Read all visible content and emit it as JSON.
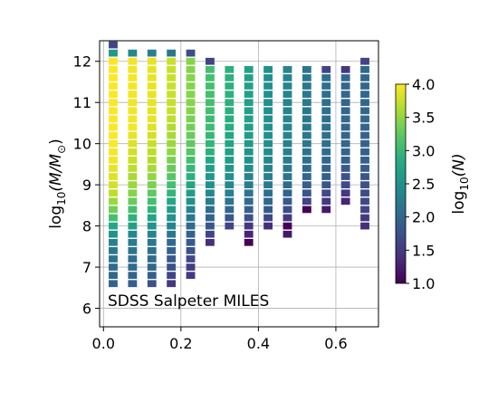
{
  "chart_data": {
    "type": "heatmap",
    "annotation": "SDSS Salpeter MILES",
    "xlim": [
      -0.01,
      0.71
    ],
    "ylim": [
      5.55,
      12.5
    ],
    "x_ticks": [
      0.0,
      0.2,
      0.4,
      0.6
    ],
    "x_tick_labels": [
      "0.0",
      "0.2",
      "0.4",
      "0.6"
    ],
    "y_ticks": [
      6,
      7,
      8,
      9,
      10,
      11,
      12
    ],
    "y_tick_labels": [
      "6",
      "7",
      "8",
      "9",
      "10",
      "11",
      "12"
    ],
    "ylabel_main": "log",
    "ylabel_sub": "10",
    "ylabel_rest": "(M/M",
    "ylabel_sun": "⊙",
    "ylabel_close": ")",
    "grid": true,
    "colorbar": {
      "range": [
        1.0,
        4.0
      ],
      "ticks": [
        1.0,
        1.5,
        2.0,
        2.5,
        3.0,
        3.5,
        4.0
      ],
      "tick_labels": [
        "1.0",
        "1.5",
        "2.0",
        "2.5",
        "3.0",
        "3.5",
        "4.0"
      ],
      "label_main": "log",
      "label_sub": "10",
      "label_rest": "(N)"
    },
    "y_step": 0.2,
    "columns": [
      {
        "x": 0.025,
        "ymin": 6.6,
        "values": [
          1.95,
          2.0,
          2.05,
          2.15,
          2.2,
          2.3,
          2.5,
          2.8,
          3.1,
          3.35,
          3.55,
          3.7,
          3.8,
          3.85,
          3.9,
          3.95,
          3.98,
          4.0,
          4.0,
          4.0,
          4.0,
          4.0,
          4.0,
          4.0,
          4.0,
          4.0,
          4.0,
          4.0,
          2.6,
          1.6
        ]
      },
      {
        "x": 0.075,
        "ymin": 6.6,
        "values": [
          1.9,
          2.0,
          2.05,
          2.1,
          2.15,
          2.25,
          2.4,
          2.7,
          2.9,
          3.1,
          3.3,
          3.45,
          3.55,
          3.6,
          3.7,
          3.75,
          3.8,
          3.85,
          3.9,
          3.95,
          3.95,
          3.95,
          3.95,
          3.95,
          3.95,
          3.95,
          3.95,
          3.95,
          2.4
        ]
      },
      {
        "x": 0.125,
        "ymin": 6.6,
        "values": [
          1.75,
          1.9,
          2.0,
          2.05,
          2.1,
          2.2,
          2.35,
          2.55,
          2.75,
          2.95,
          3.1,
          3.25,
          3.4,
          3.5,
          3.6,
          3.65,
          3.7,
          3.75,
          3.8,
          3.85,
          3.9,
          3.9,
          3.9,
          3.9,
          3.9,
          3.9,
          3.9,
          3.9,
          2.3
        ]
      },
      {
        "x": 0.175,
        "ymin": 6.6,
        "values": [
          1.5,
          1.6,
          1.75,
          1.85,
          1.95,
          2.05,
          2.2,
          2.35,
          2.5,
          2.65,
          2.8,
          2.95,
          3.1,
          3.2,
          3.3,
          3.4,
          3.5,
          3.55,
          3.6,
          3.65,
          3.7,
          3.75,
          3.75,
          3.75,
          3.75,
          3.75,
          3.75,
          3.75,
          2.2
        ]
      },
      {
        "x": 0.225,
        "ymin": 6.8,
        "values": [
          1.5,
          1.55,
          1.65,
          1.75,
          1.85,
          1.95,
          2.05,
          2.2,
          2.35,
          2.5,
          2.65,
          2.75,
          2.9,
          3.0,
          3.1,
          3.2,
          3.25,
          3.3,
          3.35,
          3.4,
          3.45,
          3.45,
          3.45,
          3.45,
          3.45,
          3.45,
          3.45,
          1.7
        ]
      },
      {
        "x": 0.275,
        "ymin": 7.6,
        "values": [
          1.4,
          1.6,
          1.8,
          1.95,
          2.1,
          2.25,
          2.4,
          2.5,
          2.6,
          2.7,
          2.8,
          2.9,
          2.95,
          3.0,
          3.05,
          3.05,
          3.1,
          3.1,
          3.1,
          3.1,
          3.1,
          3.1,
          1.6
        ]
      },
      {
        "x": 0.325,
        "ymin": 8.0,
        "values": [
          1.6,
          1.8,
          2.0,
          2.15,
          2.3,
          2.4,
          2.5,
          2.6,
          2.65,
          2.7,
          2.75,
          2.8,
          2.85,
          2.85,
          2.9,
          2.9,
          2.9,
          2.9,
          2.9,
          2.9
        ]
      },
      {
        "x": 0.375,
        "ymin": 7.6,
        "values": [
          1.0,
          1.3,
          1.5,
          1.75,
          1.9,
          2.05,
          2.15,
          2.25,
          2.35,
          2.45,
          2.5,
          2.55,
          2.6,
          2.65,
          2.65,
          2.7,
          2.7,
          2.7,
          2.7,
          2.7,
          2.7,
          2.7
        ]
      },
      {
        "x": 0.425,
        "ymin": 8.0,
        "values": [
          1.4,
          1.65,
          1.85,
          2.0,
          2.1,
          2.2,
          2.3,
          2.35,
          2.4,
          2.45,
          2.45,
          2.5,
          2.5,
          2.5,
          2.5,
          2.5,
          2.5,
          2.5,
          2.5,
          2.5
        ]
      },
      {
        "x": 0.475,
        "ymin": 7.8,
        "values": [
          1.2,
          1.0,
          1.5,
          1.7,
          1.85,
          1.95,
          2.05,
          2.15,
          2.2,
          2.25,
          2.3,
          2.3,
          2.35,
          2.35,
          2.35,
          2.35,
          2.35,
          2.35,
          2.35,
          2.35,
          2.35
        ]
      },
      {
        "x": 0.525,
        "ymin": 8.4,
        "values": [
          1.0,
          1.6,
          1.8,
          1.9,
          2.0,
          2.05,
          2.1,
          2.15,
          2.2,
          2.2,
          2.2,
          2.2,
          2.2,
          2.2,
          2.2,
          2.2,
          2.2,
          2.2
        ]
      },
      {
        "x": 0.575,
        "ymin": 8.4,
        "values": [
          1.2,
          1.5,
          1.65,
          1.8,
          1.9,
          1.95,
          2.0,
          2.05,
          2.1,
          2.1,
          2.1,
          2.1,
          2.1,
          2.1,
          2.1,
          2.1,
          2.1,
          1.6
        ]
      },
      {
        "x": 0.625,
        "ymin": 8.6,
        "values": [
          1.3,
          1.5,
          1.65,
          1.75,
          1.85,
          1.9,
          1.95,
          2.0,
          2.0,
          2.0,
          2.0,
          2.0,
          2.0,
          2.0,
          2.0,
          2.0,
          1.5
        ]
      },
      {
        "x": 0.675,
        "ymin": 8.0,
        "values": [
          1.4,
          1.5,
          1.6,
          1.65,
          1.7,
          1.75,
          1.8,
          1.85,
          1.9,
          1.9,
          1.95,
          1.95,
          1.95,
          2.0,
          2.0,
          2.0,
          2.0,
          2.0,
          2.0,
          2.0,
          1.6
        ]
      }
    ]
  }
}
